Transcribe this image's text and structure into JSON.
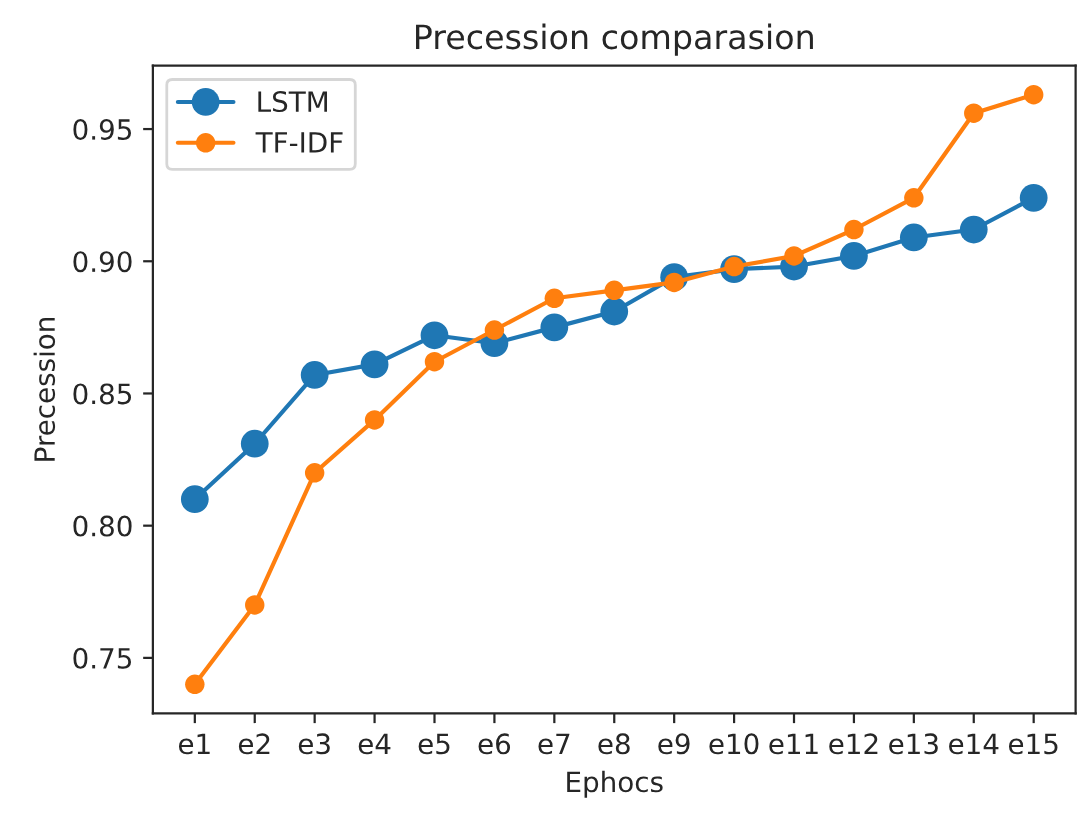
{
  "chart_data": {
    "type": "line",
    "title": "Precession comparasion",
    "xlabel": "Ephocs",
    "ylabel": "Precession",
    "categories": [
      "e1",
      "e2",
      "e3",
      "e4",
      "e5",
      "e6",
      "e7",
      "e8",
      "e9",
      "e10",
      "e11",
      "e12",
      "e13",
      "e14",
      "e15"
    ],
    "series": [
      {
        "name": "LSTM",
        "color": "#1f77b4",
        "values": [
          0.81,
          0.831,
          0.857,
          0.861,
          0.872,
          0.869,
          0.875,
          0.881,
          0.894,
          0.897,
          0.898,
          0.902,
          0.909,
          0.912,
          0.924
        ]
      },
      {
        "name": "TF-IDF",
        "color": "#ff7f0e",
        "values": [
          0.74,
          0.77,
          0.82,
          0.84,
          0.862,
          0.874,
          0.886,
          0.889,
          0.892,
          0.898,
          0.902,
          0.912,
          0.924,
          0.956,
          0.963
        ]
      }
    ],
    "ylim": [
      0.729,
      0.974
    ],
    "yticks": [
      {
        "value": 0.75,
        "label": "0.75"
      },
      {
        "value": 0.8,
        "label": "0.80"
      },
      {
        "value": 0.85,
        "label": "0.85"
      },
      {
        "value": 0.9,
        "label": "0.90"
      },
      {
        "value": 0.95,
        "label": "0.95"
      }
    ],
    "marker": "circle",
    "line_style": "solid",
    "legend": "top left",
    "grid": false
  }
}
